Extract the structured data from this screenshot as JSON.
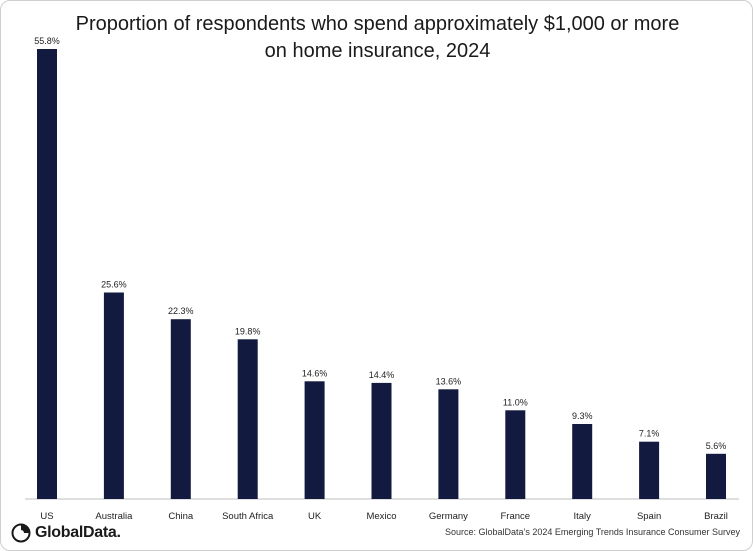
{
  "title_lines": [
    "Proportion of respondents who spend approximately $1,000 or more",
    "on home insurance, 2024"
  ],
  "brand": "GlobalData.",
  "source": "Source: GlobalData’s 2024 Emerging Trends Insurance Consumer Survey",
  "colors": {
    "bar": "#131a3f"
  },
  "chart_data": {
    "type": "bar",
    "title": "Proportion of respondents who spend approximately $1,000 or more on home insurance, 2024",
    "categories": [
      "US",
      "Australia",
      "China",
      "South Africa",
      "UK",
      "Mexico",
      "Germany",
      "France",
      "Italy",
      "Spain",
      "Brazil"
    ],
    "values": [
      55.8,
      25.6,
      22.3,
      19.8,
      14.6,
      14.4,
      13.6,
      11.0,
      9.3,
      7.1,
      5.6
    ],
    "value_labels": [
      "55.8%",
      "25.6%",
      "22.3%",
      "19.8%",
      "14.6%",
      "14.4%",
      "13.6%",
      "11.0%",
      "9.3%",
      "7.1%",
      "5.6%"
    ],
    "xlabel": "",
    "ylabel": "",
    "ylim": [
      0,
      55.8
    ],
    "grid": false,
    "legend": "none"
  }
}
